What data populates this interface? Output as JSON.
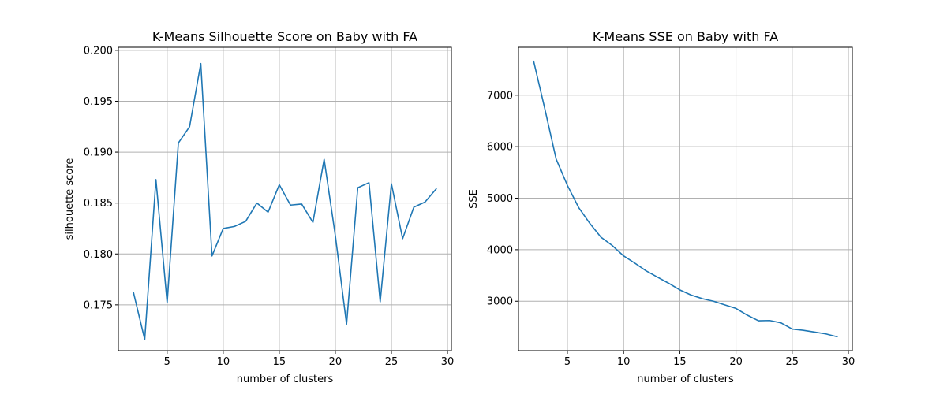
{
  "chart_data": [
    {
      "type": "line",
      "title": "K-Means Silhouette Score on Baby with FA",
      "xlabel": "number of clusters",
      "ylabel": "silhouette score",
      "xlim": [
        0.65,
        30.35
      ],
      "ylim": [
        0.1705,
        0.2003
      ],
      "xticks": [
        5,
        10,
        15,
        20,
        25,
        30
      ],
      "yticks": [
        0.175,
        0.18,
        0.185,
        0.19,
        0.195,
        0.2
      ],
      "ytick_decimals": 3,
      "grid": true,
      "color": "#1f77b4",
      "x": [
        2,
        3,
        4,
        5,
        6,
        7,
        8,
        9,
        10,
        11,
        12,
        13,
        14,
        15,
        16,
        17,
        18,
        19,
        20,
        21,
        22,
        23,
        24,
        25,
        26,
        27,
        28,
        29
      ],
      "y": [
        0.1762,
        0.1716,
        0.1873,
        0.1752,
        0.1909,
        0.1925,
        0.1987,
        0.1798,
        0.1825,
        0.1827,
        0.1832,
        0.185,
        0.1841,
        0.1868,
        0.1848,
        0.1849,
        0.1831,
        0.1893,
        0.1818,
        0.1731,
        0.1865,
        0.187,
        0.1753,
        0.1869,
        0.1815,
        0.1846,
        0.1851,
        0.1864
      ]
    },
    {
      "type": "line",
      "title": "K-Means SSE on Baby with FA",
      "xlabel": "number of clusters",
      "ylabel": "SSE",
      "xlim": [
        0.65,
        30.35
      ],
      "ylim": [
        2040,
        7930
      ],
      "xticks": [
        5,
        10,
        15,
        20,
        25,
        30
      ],
      "yticks": [
        3000,
        4000,
        5000,
        6000,
        7000
      ],
      "ytick_decimals": 0,
      "grid": true,
      "color": "#1f77b4",
      "x": [
        2,
        3,
        4,
        5,
        6,
        7,
        8,
        9,
        10,
        11,
        12,
        13,
        14,
        15,
        16,
        17,
        18,
        19,
        20,
        21,
        22,
        23,
        24,
        25,
        26,
        27,
        28,
        29
      ],
      "y": [
        7660,
        6730,
        5760,
        5250,
        4820,
        4510,
        4240,
        4080,
        3880,
        3740,
        3590,
        3470,
        3350,
        3220,
        3120,
        3050,
        3000,
        2930,
        2860,
        2730,
        2620,
        2625,
        2580,
        2460,
        2435,
        2400,
        2365,
        2310
      ]
    }
  ]
}
